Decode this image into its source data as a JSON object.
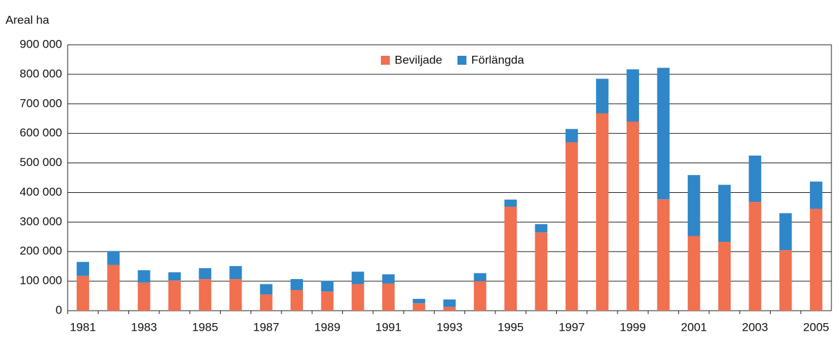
{
  "chart_data": {
    "type": "bar",
    "stacked": true,
    "y_axis_title": "Areal ha",
    "categories": [
      "1981",
      null,
      "1983",
      null,
      "1985",
      null,
      "1987",
      null,
      "1989",
      null,
      "1991",
      null,
      "1993",
      null,
      "1995",
      null,
      "1997",
      null,
      "1999",
      null,
      "2001",
      null,
      "2003",
      null,
      "2005"
    ],
    "series": [
      {
        "name": "Beviljade",
        "color": "#f07050",
        "values": [
          118000,
          155000,
          95000,
          102000,
          107000,
          107000,
          55000,
          70000,
          65000,
          90000,
          92000,
          25000,
          13000,
          100000,
          352000,
          265000,
          570000,
          668000,
          640000,
          377000,
          253000,
          233000,
          368000,
          205000,
          345000
        ]
      },
      {
        "name": "Förlängda",
        "color": "#2f86c8",
        "values": [
          47000,
          47000,
          42000,
          28000,
          37000,
          44000,
          35000,
          37000,
          36000,
          42000,
          31000,
          15000,
          25000,
          27000,
          24000,
          28000,
          45000,
          117000,
          177000,
          445000,
          206000,
          193000,
          157000,
          125000,
          92000
        ]
      }
    ],
    "ylim": [
      0,
      900000
    ],
    "yticks": [
      0,
      {
        "value": 100000,
        "label": "100 000"
      },
      {
        "value": 200000,
        "label": "200 000"
      },
      {
        "value": 300000,
        "label": "300 000"
      },
      {
        "value": 400000,
        "label": "400 000"
      },
      {
        "value": 500000,
        "label": "500 000"
      },
      {
        "value": 600000,
        "label": "600 000"
      },
      {
        "value": 700000,
        "label": "700 000"
      },
      {
        "value": 800000,
        "label": "800 000"
      },
      {
        "value": 900000,
        "label": "900 000"
      }
    ],
    "grid": true,
    "legend": "top"
  }
}
